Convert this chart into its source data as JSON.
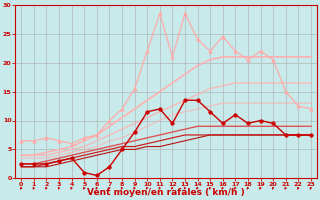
{
  "bg_color": "#c8eaea",
  "grid_color": "#aaaaaa",
  "xlabel": "Vent moyen/en rafales ( km/h )",
  "xlabel_color": "#cc0000",
  "tick_color": "#cc0000",
  "xlabel_fontsize": 6.5,
  "xlim": [
    -0.5,
    23.5
  ],
  "ylim": [
    0,
    30
  ],
  "yticks": [
    0,
    5,
    10,
    15,
    20,
    25,
    30
  ],
  "xticks": [
    0,
    1,
    2,
    3,
    4,
    5,
    6,
    7,
    8,
    9,
    10,
    11,
    12,
    13,
    14,
    15,
    16,
    17,
    18,
    19,
    20,
    21,
    22,
    23
  ],
  "lines": [
    {
      "x": [
        0,
        1,
        2,
        3,
        4,
        5,
        6,
        7,
        8,
        9,
        10,
        11,
        12,
        13,
        14,
        15,
        16,
        17,
        18,
        19,
        20,
        21,
        22,
        23
      ],
      "y": [
        4.0,
        4.0,
        4.5,
        5.0,
        5.5,
        6.5,
        7.5,
        9.0,
        10.5,
        12.0,
        13.5,
        15.0,
        16.5,
        18.0,
        19.5,
        20.5,
        21.0,
        21.0,
        21.0,
        21.0,
        21.0,
        21.0,
        21.0,
        21.0
      ],
      "color": "#ffb0b0",
      "linewidth": 1.2,
      "marker": null,
      "alpha": 1.0,
      "zorder": 2
    },
    {
      "x": [
        0,
        1,
        2,
        3,
        4,
        5,
        6,
        7,
        8,
        9,
        10,
        11,
        12,
        13,
        14,
        15,
        16,
        17,
        18,
        19,
        20,
        21,
        22,
        23
      ],
      "y": [
        4.0,
        4.0,
        4.0,
        4.5,
        5.0,
        5.5,
        6.5,
        7.5,
        8.5,
        9.5,
        10.5,
        11.5,
        12.5,
        13.5,
        14.5,
        15.5,
        16.0,
        16.5,
        16.5,
        16.5,
        16.5,
        16.5,
        16.5,
        16.5
      ],
      "color": "#ffb0b0",
      "linewidth": 1.0,
      "marker": null,
      "alpha": 0.85,
      "zorder": 2
    },
    {
      "x": [
        0,
        1,
        2,
        3,
        4,
        5,
        6,
        7,
        8,
        9,
        10,
        11,
        12,
        13,
        14,
        15,
        16,
        17,
        18,
        19,
        20,
        21,
        22,
        23
      ],
      "y": [
        3.5,
        3.5,
        3.5,
        4.0,
        4.5,
        5.0,
        5.5,
        6.5,
        7.0,
        8.0,
        9.0,
        10.0,
        11.0,
        11.5,
        12.0,
        12.5,
        13.0,
        13.0,
        13.0,
        13.0,
        13.0,
        13.0,
        13.0,
        13.0
      ],
      "color": "#ffb0b0",
      "linewidth": 0.9,
      "marker": null,
      "alpha": 0.7,
      "zorder": 2
    },
    {
      "x": [
        0,
        1,
        2,
        3,
        4,
        5,
        6,
        7,
        8,
        9,
        10,
        11,
        12,
        13,
        14,
        15,
        16,
        17,
        18,
        19,
        20,
        21,
        22,
        23
      ],
      "y": [
        2.5,
        2.5,
        3.0,
        3.5,
        4.0,
        4.5,
        5.0,
        5.5,
        6.0,
        6.5,
        7.0,
        7.5,
        8.0,
        8.5,
        9.0,
        9.0,
        9.0,
        9.0,
        9.0,
        9.0,
        9.0,
        9.0,
        9.0,
        9.0
      ],
      "color": "#dd5555",
      "linewidth": 1.0,
      "marker": null,
      "alpha": 1.0,
      "zorder": 3
    },
    {
      "x": [
        0,
        1,
        2,
        3,
        4,
        5,
        6,
        7,
        8,
        9,
        10,
        11,
        12,
        13,
        14,
        15,
        16,
        17,
        18,
        19,
        20,
        21,
        22,
        23
      ],
      "y": [
        2.0,
        2.0,
        2.5,
        3.0,
        3.5,
        4.0,
        4.5,
        5.0,
        5.5,
        5.5,
        6.0,
        6.5,
        7.0,
        7.5,
        7.5,
        7.5,
        7.5,
        7.5,
        7.5,
        7.5,
        7.5,
        7.5,
        7.5,
        7.5
      ],
      "color": "#cc2222",
      "linewidth": 0.9,
      "marker": null,
      "alpha": 1.0,
      "zorder": 3
    },
    {
      "x": [
        0,
        1,
        2,
        3,
        4,
        5,
        6,
        7,
        8,
        9,
        10,
        11,
        12,
        13,
        14,
        15,
        16,
        17,
        18,
        19,
        20,
        21,
        22,
        23
      ],
      "y": [
        2.0,
        2.0,
        2.0,
        2.5,
        3.0,
        3.5,
        4.0,
        4.5,
        5.0,
        5.0,
        5.5,
        5.5,
        6.0,
        6.5,
        7.0,
        7.5,
        7.5,
        7.5,
        7.5,
        7.5,
        7.5,
        7.5,
        7.5,
        7.5
      ],
      "color": "#bb1111",
      "linewidth": 0.8,
      "marker": null,
      "alpha": 1.0,
      "zorder": 3
    },
    {
      "x": [
        0,
        1,
        2,
        3,
        4,
        5,
        6,
        7,
        8,
        9,
        10,
        11,
        12,
        13,
        14,
        15,
        16,
        17,
        18,
        19,
        20,
        21,
        22,
        23
      ],
      "y": [
        6.5,
        6.5,
        7.0,
        6.5,
        6.0,
        7.0,
        7.5,
        10.0,
        12.0,
        15.5,
        22.0,
        28.5,
        21.0,
        28.5,
        24.0,
        22.0,
        24.5,
        22.0,
        20.5,
        22.0,
        20.5,
        15.0,
        12.5,
        12.0
      ],
      "color": "#ffaaaa",
      "linewidth": 0.9,
      "marker": "^",
      "markersize": 2.5,
      "alpha": 1.0,
      "zorder": 4
    },
    {
      "x": [
        0,
        1,
        2,
        3,
        4,
        5,
        6,
        7,
        8,
        9,
        10,
        11,
        12,
        13,
        14,
        15,
        16,
        17,
        18,
        19,
        20,
        21,
        22,
        23
      ],
      "y": [
        2.5,
        2.5,
        2.5,
        3.0,
        3.5,
        1.0,
        0.5,
        2.0,
        5.0,
        8.0,
        11.5,
        12.0,
        9.5,
        13.5,
        13.5,
        11.5,
        9.5,
        11.0,
        9.5,
        10.0,
        9.5,
        7.5,
        7.5,
        7.5
      ],
      "color": "#cc0000",
      "linewidth": 1.0,
      "marker": "o",
      "markersize": 2.5,
      "alpha": 1.0,
      "zorder": 5
    }
  ]
}
